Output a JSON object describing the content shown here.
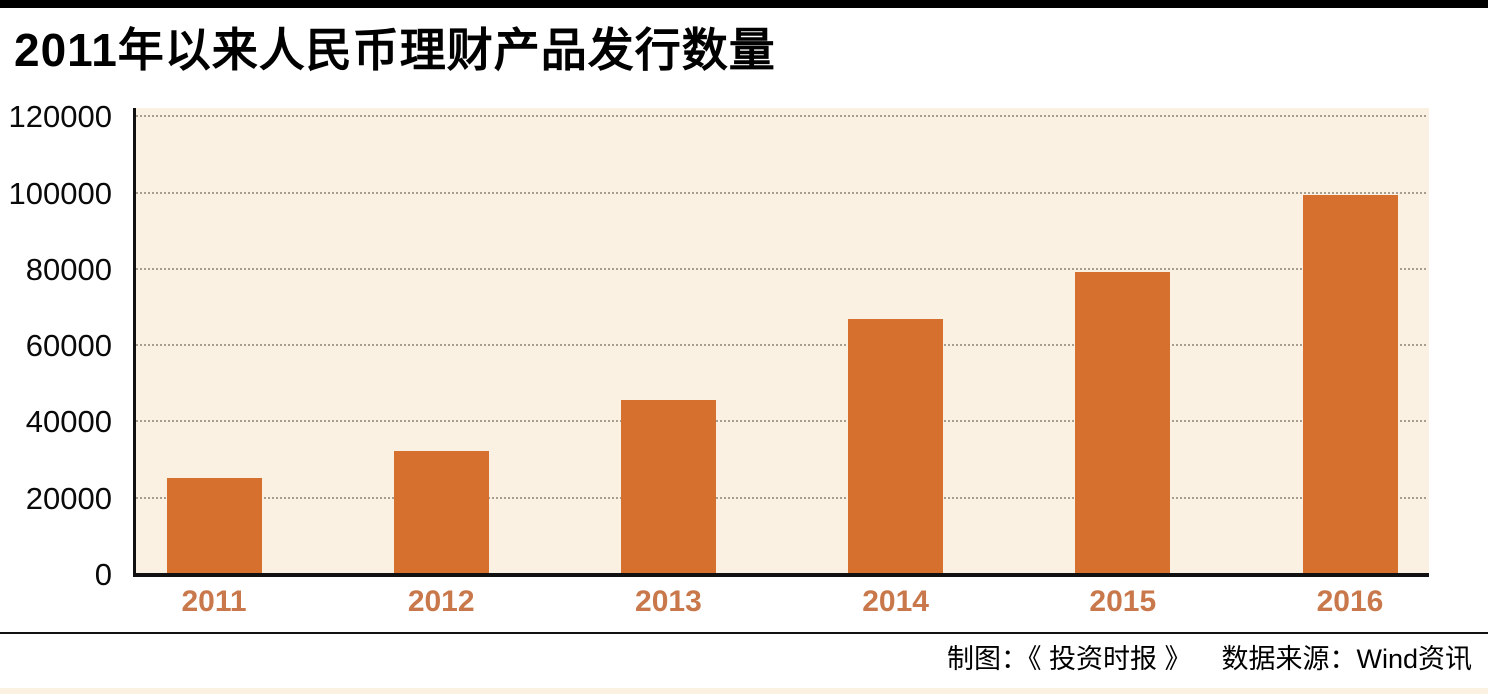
{
  "page": {
    "title": "2011年以来人民币理财产品发行数量",
    "footer": {
      "credit": "制图：《 投资时报 》",
      "source": "数据来源：Wind资讯"
    }
  },
  "colors": {
    "top_bar": "#000000",
    "bar_fill": "#d6702e",
    "plot_background": "#fbf1e3",
    "gridline": "#a89e90",
    "axis_line": "#111111",
    "x_tick_label": "#c9784b",
    "y_tick_label": "#0a0a0a",
    "bottom_strip": "#fbf1e3"
  },
  "chart_data": {
    "type": "bar",
    "title": "2011年以来人民币理财产品发行数量",
    "categories": [
      "2011",
      "2012",
      "2013",
      "2014",
      "2015",
      "2016"
    ],
    "values": [
      25500,
      32500,
      46000,
      67000,
      79500,
      99500
    ],
    "xlabel": "",
    "ylabel": "",
    "yticks": [
      0,
      20000,
      40000,
      60000,
      80000,
      100000,
      120000
    ],
    "ylim": [
      0,
      120000
    ],
    "grid": "horizontal-dotted",
    "legend": "none",
    "credit": "制图：《 投资时报 》",
    "source": "数据来源：Wind资讯"
  }
}
